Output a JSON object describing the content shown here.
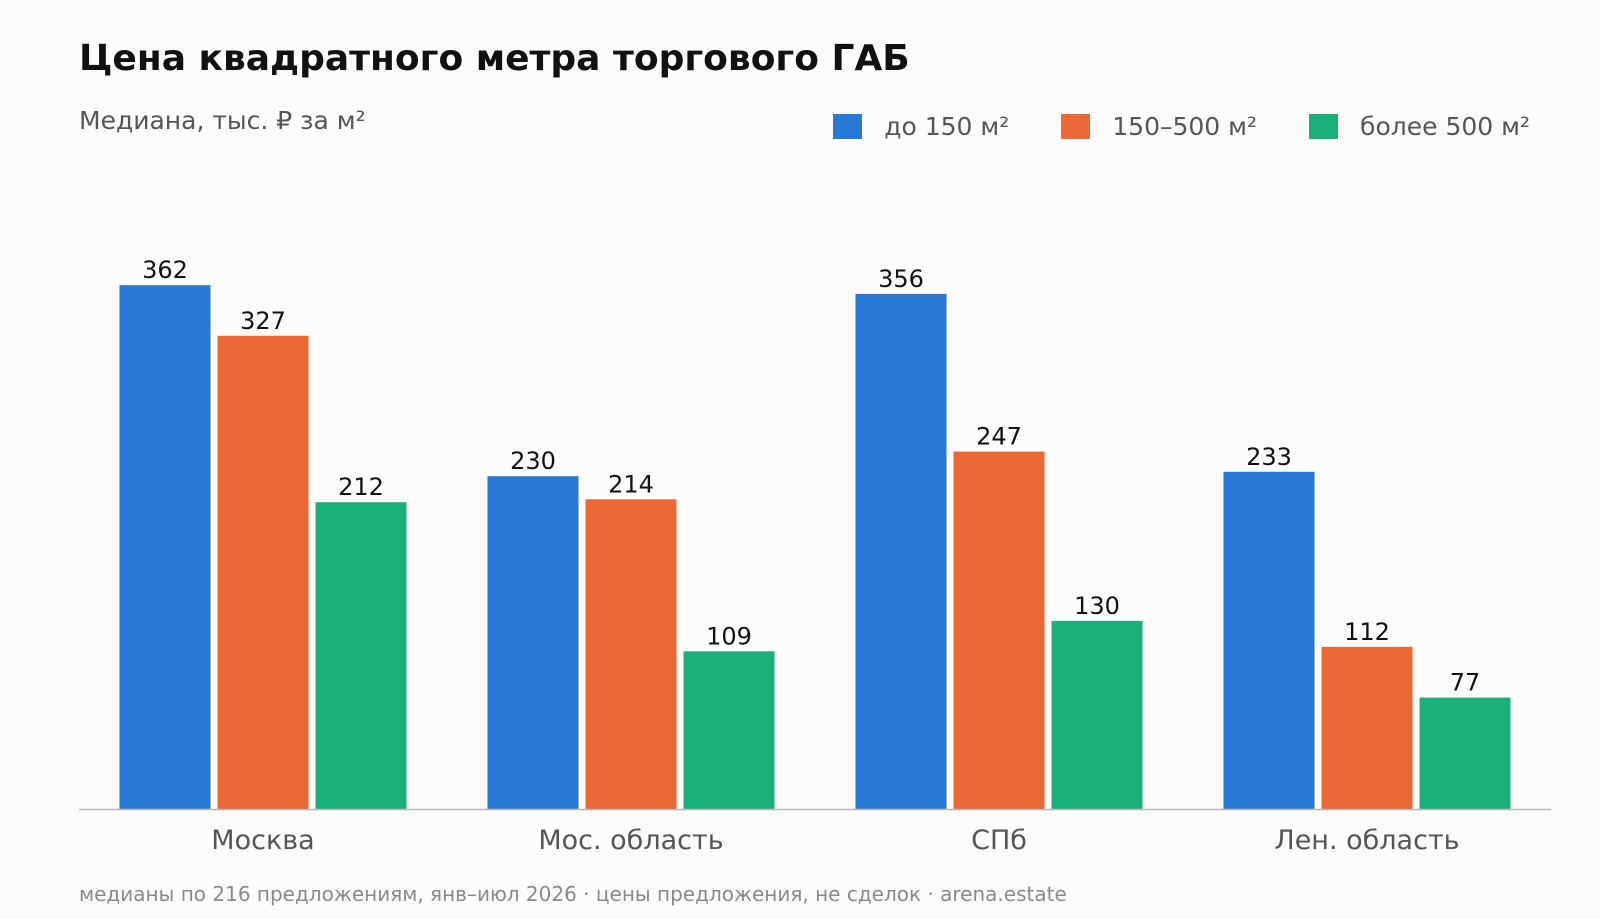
{
  "chart_data": {
    "type": "bar",
    "title": "Цена квадратного метра торгового ГАБ",
    "subtitle": "Медиана, тыс. ₽ за м²",
    "categories": [
      "Москва",
      "Мос. область",
      "СПб",
      "Лен. область"
    ],
    "series": [
      {
        "name": "до 150 м²",
        "color": "#2a78d6",
        "values": [
          362,
          230,
          356,
          233
        ]
      },
      {
        "name": "150–500 м²",
        "color": "#ec6836",
        "values": [
          327,
          214,
          247,
          112
        ]
      },
      {
        "name": "более 500 м²",
        "color": "#1bb07a",
        "values": [
          212,
          109,
          130,
          77
        ]
      }
    ],
    "ylim": [
      0,
      400
    ],
    "grid": false,
    "legend_position": "top-right",
    "footnote": "медианы по 216 предложениям, янв–июл 2026 · цены предложения, не сделок · arena.estate"
  }
}
